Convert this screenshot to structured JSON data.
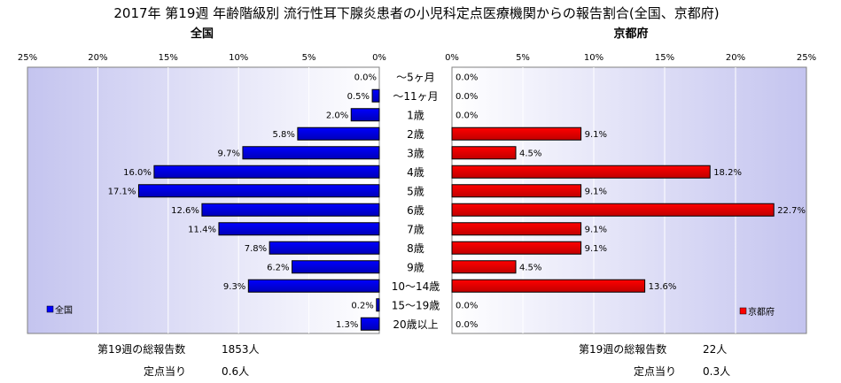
{
  "chart_data": {
    "type": "bar",
    "title": "2017年 第19週 年齢階級別 流行性耳下腺炎患者の小児科定点医療機関からの報告割合(全国、京都府)",
    "categories": [
      "～5ヶ月",
      "～11ヶ月",
      "1歳",
      "2歳",
      "3歳",
      "4歳",
      "5歳",
      "6歳",
      "7歳",
      "8歳",
      "9歳",
      "10～14歳",
      "15～19歳",
      "20歳以上"
    ],
    "xlim": [
      0,
      25
    ],
    "ticks": [
      "25%",
      "20%",
      "15%",
      "10%",
      "5%",
      "0%"
    ],
    "ticks_right": [
      "0%",
      "5%",
      "10%",
      "15%",
      "20%",
      "25%"
    ],
    "series": [
      {
        "name": "全国",
        "panel_title": "全国",
        "color": "#0000ff",
        "values": [
          0.0,
          0.5,
          2.0,
          5.8,
          9.7,
          16.0,
          17.1,
          12.6,
          11.4,
          7.8,
          6.2,
          9.3,
          0.2,
          1.3
        ],
        "value_labels": [
          "0.0%",
          "0.5%",
          "2.0%",
          "5.8%",
          "9.7%",
          "16.0%",
          "17.1%",
          "12.6%",
          "11.4%",
          "7.8%",
          "6.2%",
          "9.3%",
          "0.2%",
          "1.3%"
        ]
      },
      {
        "name": "京都府",
        "panel_title": "京都府",
        "color": "#ff0000",
        "values": [
          0.0,
          0.0,
          0.0,
          9.1,
          4.5,
          18.2,
          9.1,
          22.7,
          9.1,
          9.1,
          4.5,
          13.6,
          0.0,
          0.0
        ],
        "value_labels": [
          "0.0%",
          "0.0%",
          "0.0%",
          "9.1%",
          "4.5%",
          "18.2%",
          "9.1%",
          "22.7%",
          "9.1%",
          "9.1%",
          "4.5%",
          "13.6%",
          "0.0%",
          "0.0%"
        ]
      }
    ],
    "grid": true,
    "legend": [
      "bottom-left",
      "bottom-right"
    ]
  },
  "footer": {
    "left_total_label": "第19週の総報告数",
    "left_total_value": "1853人",
    "left_per_label": "定点当り",
    "left_per_value": "0.6人",
    "right_total_label": "第19週の総報告数",
    "right_total_value": "22人",
    "right_per_label": "定点当り",
    "right_per_value": "0.3人"
  }
}
